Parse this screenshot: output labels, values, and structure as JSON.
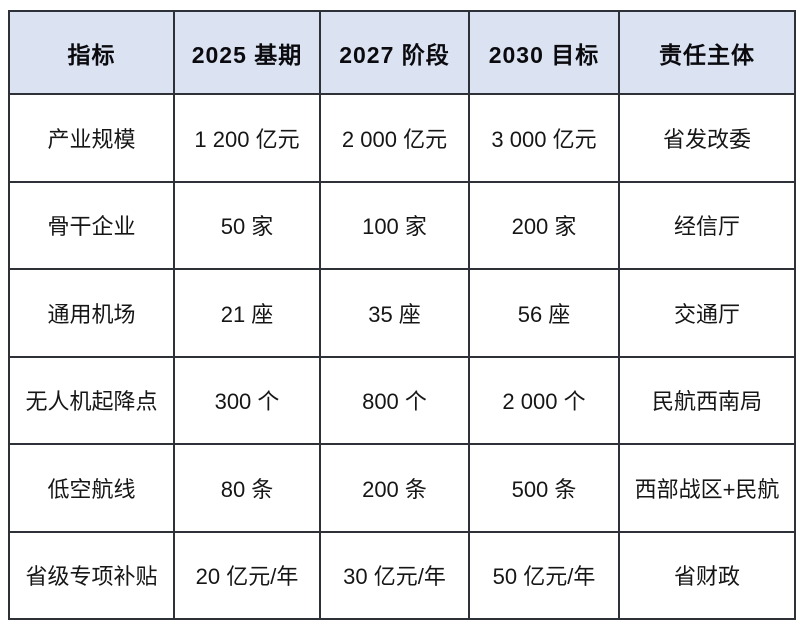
{
  "table": {
    "headers": [
      "指标",
      "2025 基期",
      "2027 阶段",
      "2030 目标",
      "责任主体"
    ],
    "rows": [
      {
        "cells": [
          "产业规模",
          "1 200 亿元",
          "2 000 亿元",
          "3 000 亿元",
          "省发改委"
        ]
      },
      {
        "cells": [
          "骨干企业",
          "50 家",
          "100 家",
          "200 家",
          "经信厅"
        ]
      },
      {
        "cells": [
          "通用机场",
          "21 座",
          "35 座",
          "56 座",
          "交通厅"
        ]
      },
      {
        "cells": [
          "无人机起降点",
          "300 个",
          "800 个",
          "2 000 个",
          "民航西南局"
        ]
      },
      {
        "cells": [
          "低空航线",
          "80 条",
          "200 条",
          "500 条",
          "西部战区+民航"
        ]
      },
      {
        "cells": [
          "省级专项补贴",
          "20 亿元/年",
          "30 亿元/年",
          "50 亿元/年",
          "省财政"
        ]
      }
    ],
    "colors": {
      "header_bg": "#dbe3f2",
      "border": "#2e3138",
      "text": "#161616",
      "page_bg": "#ffffff"
    }
  }
}
